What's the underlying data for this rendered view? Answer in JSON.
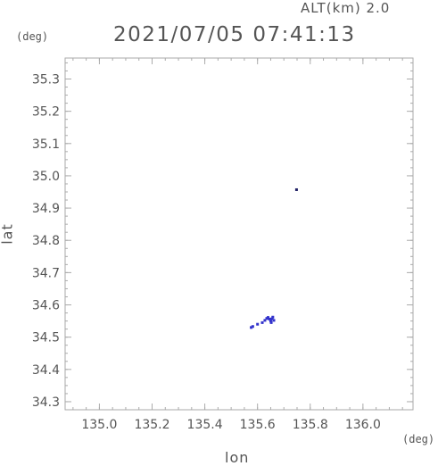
{
  "header": {
    "altitude_label": "ALT(km) 2.0",
    "timestamp": "2021/07/05 07:41:13"
  },
  "chart_data": {
    "type": "scatter",
    "title": "2021/07/05 07:41:13",
    "xlabel": "lon",
    "ylabel": "lat",
    "x_unit": "(deg)",
    "y_unit": "(deg)",
    "xlim": [
      134.87,
      136.19
    ],
    "ylim": [
      34.275,
      35.365
    ],
    "x_ticks": [
      135.0,
      135.2,
      135.4,
      135.6,
      135.8,
      136.0
    ],
    "x_tick_labels": [
      "135.0",
      "135.2",
      "135.4",
      "135.6",
      "135.8",
      "136.0"
    ],
    "y_ticks": [
      34.3,
      34.4,
      34.5,
      34.6,
      34.7,
      34.8,
      34.9,
      35.0,
      35.1,
      35.2,
      35.3
    ],
    "y_tick_labels": [
      "34.3",
      "34.4",
      "34.5",
      "34.6",
      "34.7",
      "34.8",
      "34.9",
      "35.0",
      "35.1",
      "35.2",
      "35.3"
    ],
    "grid": false,
    "colors": {
      "axis": "#aaaaaa",
      "points": "#3333cc",
      "text": "#555555"
    },
    "points": [
      {
        "x": 135.748,
        "y": 34.957,
        "color": "#222266"
      },
      {
        "x": 135.576,
        "y": 34.53,
        "color": "#3333cc"
      },
      {
        "x": 135.582,
        "y": 34.533,
        "color": "#3333cc"
      },
      {
        "x": 135.6,
        "y": 34.54,
        "color": "#3333cc"
      },
      {
        "x": 135.618,
        "y": 34.545,
        "color": "#3333cc"
      },
      {
        "x": 135.628,
        "y": 34.552,
        "color": "#3333cc"
      },
      {
        "x": 135.635,
        "y": 34.558,
        "color": "#3333cc"
      },
      {
        "x": 135.64,
        "y": 34.561,
        "color": "#3333cc"
      },
      {
        "x": 135.645,
        "y": 34.556,
        "color": "#3333cc"
      },
      {
        "x": 135.65,
        "y": 34.55,
        "color": "#3333cc"
      },
      {
        "x": 135.655,
        "y": 34.557,
        "color": "#3333cc"
      },
      {
        "x": 135.658,
        "y": 34.562,
        "color": "#3333cc"
      },
      {
        "x": 135.662,
        "y": 34.552,
        "color": "#3333cc"
      },
      {
        "x": 135.652,
        "y": 34.545,
        "color": "#3333cc"
      }
    ]
  }
}
